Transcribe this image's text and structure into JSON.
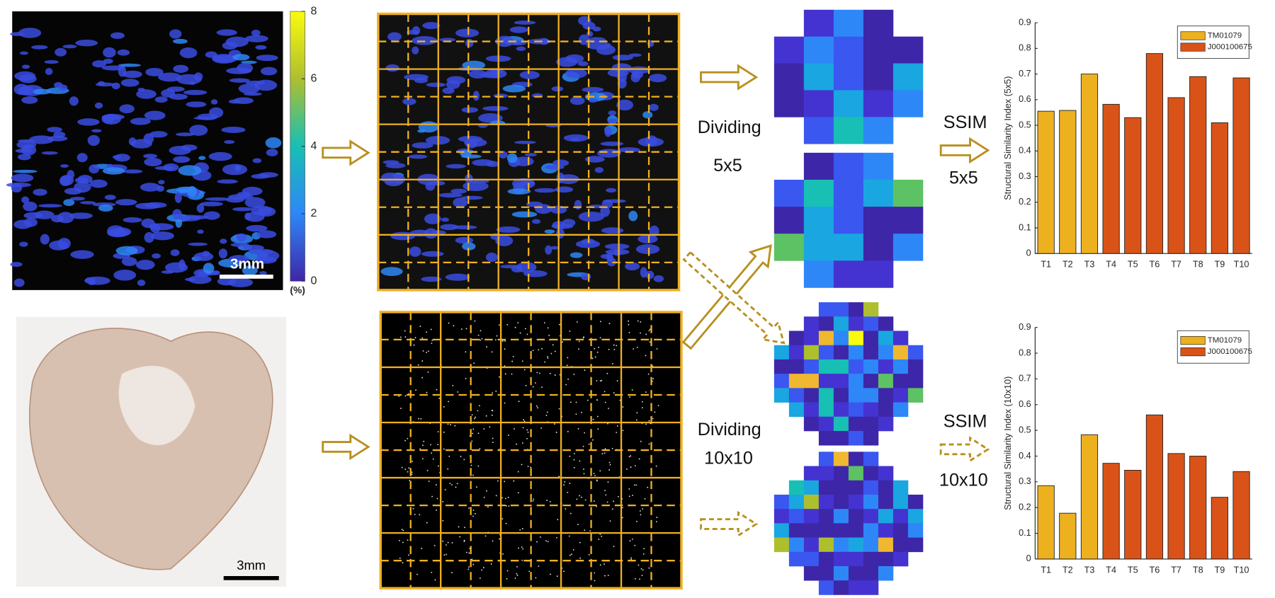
{
  "chart_data": [
    {
      "type": "bar",
      "ylabel": "Structural Similarity Index (5x5)",
      "categories": [
        "T1",
        "T2",
        "T3",
        "T4",
        "T5",
        "T6",
        "T7",
        "T8",
        "T9",
        "T10"
      ],
      "series": [
        {
          "name": "TM01079",
          "color": "#edb120",
          "values": [
            0.555,
            0.558,
            0.7,
            null,
            null,
            null,
            null,
            null,
            null,
            null
          ]
        },
        {
          "name": "J000100675",
          "color": "#d95319",
          "values": [
            null,
            null,
            null,
            0.582,
            0.53,
            0.78,
            0.608,
            0.69,
            0.51,
            0.685
          ]
        }
      ],
      "ylim": [
        0,
        0.9
      ],
      "yticks": [
        0,
        0.1,
        0.2,
        0.3,
        0.4,
        0.5,
        0.6,
        0.7,
        0.8,
        0.9
      ],
      "legend": "top-right"
    },
    {
      "type": "bar",
      "ylabel": "Structural Similarity Index (10x10)",
      "categories": [
        "T1",
        "T2",
        "T3",
        "T4",
        "T5",
        "T6",
        "T7",
        "T8",
        "T9",
        "T10"
      ],
      "series": [
        {
          "name": "TM01079",
          "color": "#edb120",
          "values": [
            0.285,
            0.178,
            0.483,
            null,
            null,
            null,
            null,
            null,
            null,
            null
          ]
        },
        {
          "name": "J000100675",
          "color": "#d95319",
          "values": [
            null,
            null,
            null,
            0.372,
            0.345,
            0.56,
            0.41,
            0.4,
            0.24,
            0.34
          ]
        }
      ],
      "ylim": [
        0,
        0.9
      ],
      "yticks": [
        0,
        0.1,
        0.2,
        0.3,
        0.4,
        0.5,
        0.6,
        0.7,
        0.8,
        0.9
      ],
      "legend": "top-right"
    }
  ],
  "colorbar": {
    "lim": [
      0,
      8
    ],
    "ticks": [
      0,
      2,
      4,
      6,
      8
    ],
    "unit": "(%)"
  },
  "labels": {
    "scale_top": "3mm",
    "scale_bottom": "3mm",
    "dividing_top": "Dividing",
    "grid_top": "5x5",
    "dividing_bottom": "Dividing",
    "grid_bottom": "10x10",
    "ssim_top": "SSIM",
    "ssim_grid_top": "5x5",
    "ssim_bottom": "SSIM",
    "ssim_grid_bottom": "10x10"
  }
}
